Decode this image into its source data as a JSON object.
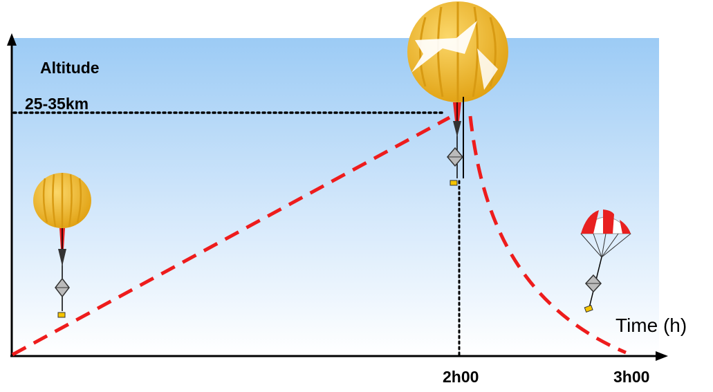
{
  "labels": {
    "y_axis": "Altitude",
    "altitude_range": "25-35km",
    "x_axis": "Time (h)",
    "burst_time": "2h00",
    "end_time": "3h00"
  },
  "colors": {
    "sky_top": "#9ccbf5",
    "sky_bottom": "#ffffff",
    "trajectory": "#ee1c1c",
    "balloon": "#f0b21e",
    "balloon_stripe": "#d89a12",
    "parachute_red": "#e82020",
    "axis": "#000000"
  },
  "icons": [
    "ascending-balloon-icon",
    "bursting-balloon-icon",
    "parachute-icon"
  ]
}
